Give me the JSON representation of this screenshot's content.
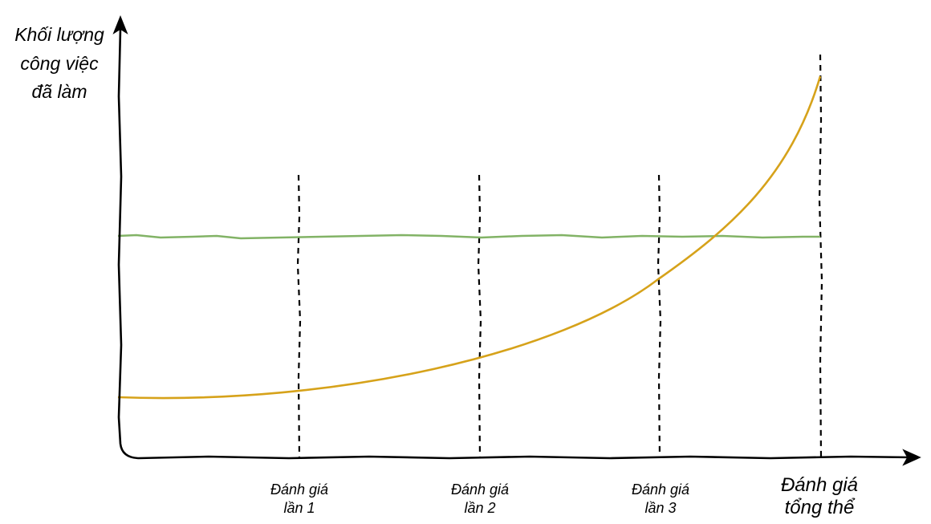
{
  "y_axis_title_lines": [
    "Khối lượng",
    "công việc",
    "đã làm"
  ],
  "milestones": [
    {
      "line1": "Đánh giá",
      "line2": "lần 1"
    },
    {
      "line1": "Đánh giá",
      "line2": "lần 2"
    },
    {
      "line1": "Đánh giá",
      "line2": "lần 3"
    },
    {
      "line1": "Đánh giá",
      "line2": "tổng thể"
    }
  ],
  "colors": {
    "flat_line": "#82b366",
    "growth_curve": "#d6a21a",
    "axes": "#000000",
    "milestone_lines": "#000000"
  }
}
